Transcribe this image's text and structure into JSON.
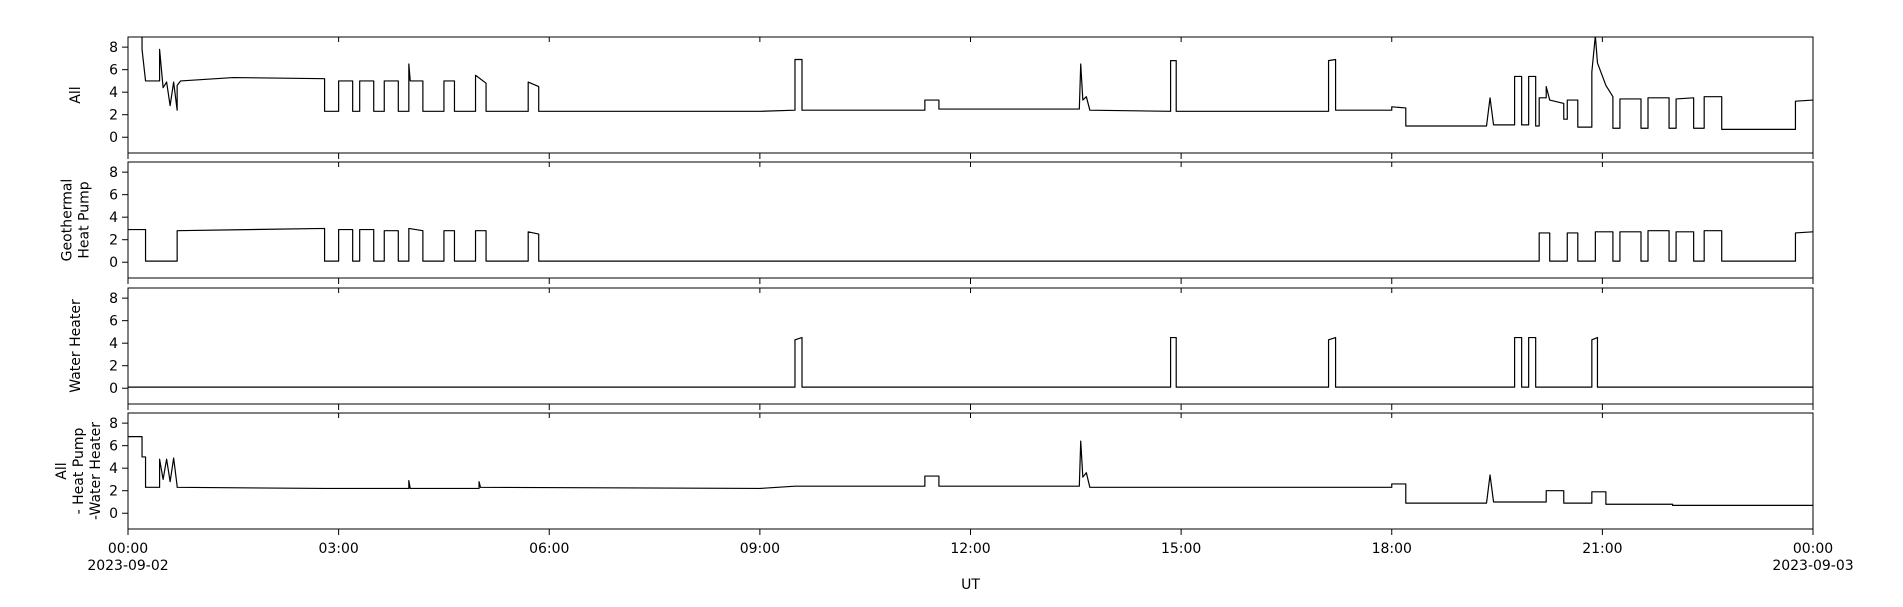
{
  "chart_data": [
    {
      "type": "line",
      "ylabel": [
        "All"
      ],
      "ylim": [
        -1.4,
        8.9
      ],
      "yticks": [
        0,
        2,
        4,
        6,
        8
      ],
      "xlim": [
        0,
        24
      ],
      "color": "#000000",
      "x": [
        0,
        0.2,
        0.2,
        0.25,
        0.25,
        0.45,
        0.45,
        0.5,
        0.55,
        0.6,
        0.65,
        0.7,
        0.7,
        0.75,
        1.5,
        2.8,
        2.8,
        3.0,
        3.0,
        3.2,
        3.2,
        3.3,
        3.3,
        3.5,
        3.5,
        3.65,
        3.65,
        3.85,
        3.85,
        4.0,
        4.0,
        4.02,
        4.2,
        4.2,
        4.5,
        4.5,
        4.65,
        4.65,
        4.95,
        4.95,
        5.1,
        5.1,
        5.7,
        5.7,
        5.85,
        5.85,
        9.0,
        9.5,
        9.5,
        9.6,
        9.6,
        11.35,
        11.35,
        11.55,
        11.55,
        13.55,
        13.57,
        13.6,
        13.65,
        13.7,
        14.85,
        14.85,
        14.93,
        14.93,
        17.1,
        17.1,
        17.2,
        17.2,
        18.0,
        18.0,
        18.2,
        18.2,
        19.35,
        19.4,
        19.45,
        19.75,
        19.75,
        19.85,
        19.85,
        19.95,
        19.95,
        20.05,
        20.05,
        20.1,
        20.1,
        20.2,
        20.2,
        20.25,
        20.45,
        20.45,
        20.5,
        20.5,
        20.65,
        20.65,
        20.85,
        20.85,
        20.9,
        20.93,
        21.05,
        21.15,
        21.15,
        21.25,
        21.25,
        21.55,
        21.55,
        21.65,
        21.65,
        21.95,
        21.95,
        22.05,
        22.05,
        22.3,
        22.3,
        22.45,
        22.45,
        22.7,
        22.7,
        23.75,
        23.75,
        24
      ],
      "values": [
        9.0,
        9.0,
        7.8,
        5.0,
        5.0,
        5.0,
        7.8,
        4.4,
        4.9,
        2.8,
        4.9,
        2.4,
        4.6,
        5.0,
        5.3,
        5.2,
        2.3,
        2.3,
        5.0,
        5.0,
        2.3,
        2.3,
        5.0,
        5.0,
        2.3,
        2.3,
        5.0,
        5.0,
        2.3,
        2.3,
        6.5,
        5.0,
        5.0,
        2.3,
        2.3,
        5.0,
        5.0,
        2.3,
        2.3,
        5.5,
        4.8,
        2.3,
        2.3,
        4.9,
        4.5,
        2.3,
        2.3,
        2.4,
        6.9,
        6.9,
        2.4,
        2.4,
        3.3,
        3.3,
        2.5,
        2.5,
        6.5,
        3.3,
        3.6,
        2.4,
        2.3,
        6.8,
        6.8,
        2.3,
        2.3,
        6.8,
        6.9,
        2.4,
        2.4,
        2.7,
        2.6,
        1.0,
        1.0,
        3.5,
        1.1,
        1.1,
        5.4,
        5.4,
        1.1,
        1.1,
        5.4,
        5.4,
        1.0,
        1.0,
        3.5,
        3.5,
        4.5,
        3.3,
        3.0,
        1.6,
        1.6,
        3.3,
        3.3,
        0.9,
        0.9,
        5.8,
        9.0,
        6.6,
        4.6,
        3.6,
        0.8,
        0.8,
        3.4,
        3.4,
        0.8,
        0.8,
        3.5,
        3.5,
        0.8,
        0.8,
        3.4,
        3.5,
        0.8,
        0.8,
        3.6,
        3.6,
        0.7,
        0.7,
        3.2,
        3.3
      ]
    },
    {
      "type": "line",
      "ylabel": [
        "Geothermal",
        "Heat Pump"
      ],
      "ylim": [
        -1.4,
        8.9
      ],
      "yticks": [
        0,
        2,
        4,
        6,
        8
      ],
      "xlim": [
        0,
        24
      ],
      "color": "#000000",
      "x": [
        0,
        0.25,
        0.25,
        0.7,
        0.7,
        2.8,
        2.8,
        3.0,
        3.0,
        3.2,
        3.2,
        3.3,
        3.3,
        3.5,
        3.5,
        3.65,
        3.65,
        3.85,
        3.85,
        4.0,
        4.0,
        4.2,
        4.2,
        4.5,
        4.5,
        4.65,
        4.65,
        4.95,
        4.95,
        5.1,
        5.1,
        5.7,
        5.7,
        5.85,
        5.85,
        20.1,
        20.1,
        20.25,
        20.25,
        20.5,
        20.5,
        20.65,
        20.65,
        20.9,
        20.9,
        21.15,
        21.15,
        21.25,
        21.25,
        21.55,
        21.55,
        21.65,
        21.65,
        21.95,
        21.95,
        22.05,
        22.05,
        22.3,
        22.3,
        22.45,
        22.45,
        22.7,
        22.7,
        23.75,
        23.75,
        24
      ],
      "values": [
        2.9,
        2.9,
        0.1,
        0.1,
        2.8,
        3.0,
        0.1,
        0.1,
        2.9,
        2.9,
        0.1,
        0.1,
        2.9,
        2.9,
        0.1,
        0.1,
        2.8,
        2.8,
        0.1,
        0.1,
        3.0,
        2.8,
        0.1,
        0.1,
        2.8,
        2.8,
        0.1,
        0.1,
        2.8,
        2.8,
        0.1,
        0.1,
        2.7,
        2.5,
        0.1,
        0.1,
        2.6,
        2.6,
        0.1,
        0.1,
        2.6,
        2.6,
        0.1,
        0.1,
        2.7,
        2.7,
        0.1,
        0.1,
        2.7,
        2.7,
        0.1,
        0.1,
        2.8,
        2.8,
        0.1,
        0.1,
        2.7,
        2.7,
        0.1,
        0.1,
        2.8,
        2.8,
        0.1,
        0.1,
        2.6,
        2.7
      ]
    },
    {
      "type": "line",
      "ylabel": [
        "Water Heater"
      ],
      "ylim": [
        -1.4,
        8.9
      ],
      "yticks": [
        0,
        2,
        4,
        6,
        8
      ],
      "xlim": [
        0,
        24
      ],
      "color": "#000000",
      "x": [
        0,
        9.5,
        9.5,
        9.6,
        9.6,
        14.85,
        14.85,
        14.93,
        14.93,
        17.1,
        17.1,
        17.2,
        17.2,
        19.75,
        19.75,
        19.85,
        19.85,
        19.95,
        19.95,
        20.05,
        20.05,
        20.85,
        20.85,
        20.93,
        20.93,
        24
      ],
      "values": [
        0.1,
        0.1,
        4.3,
        4.5,
        0.1,
        0.1,
        4.5,
        4.5,
        0.1,
        0.1,
        4.3,
        4.5,
        0.1,
        0.1,
        4.5,
        4.5,
        0.1,
        0.1,
        4.5,
        4.5,
        0.1,
        0.1,
        4.3,
        4.5,
        0.1,
        0.1
      ]
    },
    {
      "type": "line",
      "ylabel": [
        "All",
        "- Heat Pump",
        "-Water Heater"
      ],
      "ylim": [
        -1.4,
        8.9
      ],
      "yticks": [
        0,
        2,
        4,
        6,
        8
      ],
      "xlim": [
        0,
        24
      ],
      "color": "#000000",
      "xlabel": "UT",
      "xticks": [
        {
          "value": 0,
          "label": "00:00"
        },
        {
          "value": 3,
          "label": "03:00"
        },
        {
          "value": 6,
          "label": "06:00"
        },
        {
          "value": 9,
          "label": "09:00"
        },
        {
          "value": 12,
          "label": "12:00"
        },
        {
          "value": 15,
          "label": "15:00"
        },
        {
          "value": 18,
          "label": "18:00"
        },
        {
          "value": 21,
          "label": "21:00"
        },
        {
          "value": 24,
          "label": "00:00"
        }
      ],
      "x_date_labels": [
        {
          "value": 0,
          "label": "2023-09-02"
        },
        {
          "value": 24,
          "label": "2023-09-03"
        }
      ],
      "x": [
        0,
        0.2,
        0.2,
        0.25,
        0.25,
        0.45,
        0.45,
        0.5,
        0.55,
        0.6,
        0.65,
        0.7,
        0.7,
        2.8,
        4.0,
        4.0,
        4.02,
        5.0,
        5.0,
        5.02,
        9.0,
        9.5,
        11.35,
        11.35,
        11.55,
        11.55,
        13.55,
        13.57,
        13.6,
        13.65,
        13.7,
        18.0,
        18.0,
        18.2,
        18.2,
        19.35,
        19.4,
        19.45,
        20.05,
        20.2,
        20.2,
        20.45,
        20.45,
        20.85,
        20.85,
        21.05,
        21.05,
        22.0,
        22.0,
        24
      ],
      "values": [
        6.8,
        6.8,
        5.0,
        5.0,
        2.3,
        2.3,
        4.8,
        3.0,
        4.8,
        2.8,
        4.9,
        2.4,
        2.3,
        2.2,
        2.2,
        2.9,
        2.2,
        2.2,
        2.8,
        2.3,
        2.2,
        2.4,
        2.4,
        3.3,
        3.3,
        2.4,
        2.4,
        6.4,
        3.2,
        3.6,
        2.3,
        2.3,
        2.6,
        2.6,
        0.9,
        0.9,
        3.4,
        1.0,
        1.0,
        1.0,
        2.0,
        2.0,
        0.9,
        0.9,
        1.9,
        1.9,
        0.8,
        0.8,
        0.7,
        0.7
      ]
    }
  ]
}
